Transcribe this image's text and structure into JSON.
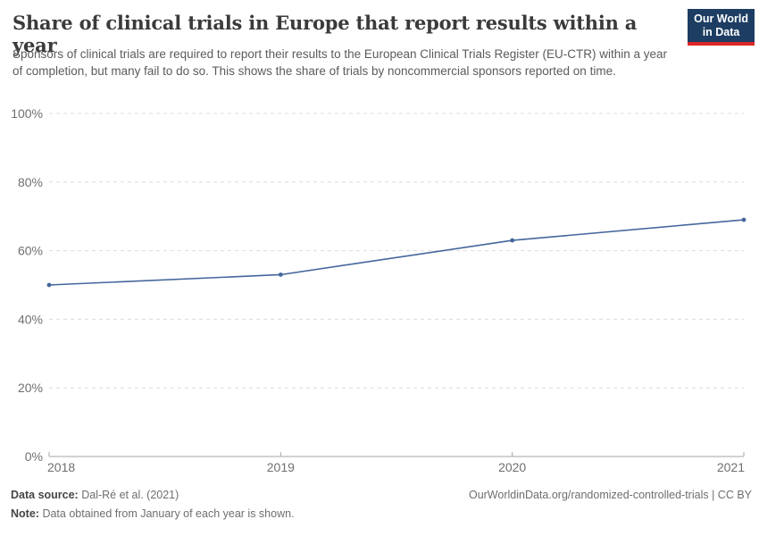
{
  "header": {
    "title": "Share of clinical trials in Europe that report results within a year",
    "subtitle": "Sponsors of clinical trials are required to report their results to the European Clinical Trials Register (EU-CTR) within a year of completion, but many fail to do so. This shows the share of trials by noncommercial sponsors reported on time.",
    "logo": {
      "line1": "Our World",
      "line2": "in Data"
    }
  },
  "chart_data": {
    "type": "line",
    "title": "Share of clinical trials in Europe that report results within a year",
    "x": [
      "2018",
      "2019",
      "2020",
      "2021"
    ],
    "values": [
      50,
      53,
      63,
      69
    ],
    "unit": "%",
    "xlabel": "",
    "ylabel": "",
    "ylim": [
      0,
      100
    ],
    "yticks": [
      0,
      20,
      40,
      60,
      80,
      100
    ],
    "ytick_labels": [
      "0%",
      "20%",
      "40%",
      "60%",
      "80%",
      "100%"
    ],
    "grid": "horizontal-dashed",
    "legend": "none",
    "line_color": "#44669c"
  },
  "footer": {
    "source_label": "Data source:",
    "source_value": "Dal-Ré et al. (2021)",
    "note_label": "Note:",
    "note_value": "Data obtained from January of each year is shown.",
    "link": "OurWorldinData.org/randomized-controlled-trials | CC BY"
  },
  "colors": {
    "accent_line": "#44669c",
    "logo_background": "#1d3d63",
    "logo_stripe": "#dc2626",
    "title_text": "#3a3a3a",
    "subtitle_text": "#5b5b5b",
    "axis_text": "#6f6f6f",
    "gridline": "#dcdcdc",
    "axis_line": "#a5a5a5"
  }
}
